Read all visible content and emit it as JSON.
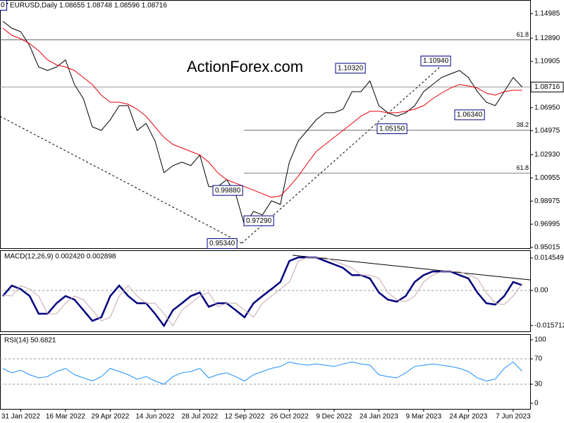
{
  "chart_data": [
    {
      "type": "line",
      "title": "EURUSD,Daily  1.08655 1.08748 1.08596 1.08716",
      "watermark": "ActionForex.com",
      "categories": [
        null,
        null,
        "31 Jan 2022",
        null,
        null,
        null,
        null,
        "16 Mar 2022",
        null,
        null,
        null,
        null,
        "29 Apr 2022",
        null,
        null,
        null,
        null,
        "14 Jun 2022",
        null,
        null,
        null,
        null,
        "28 Jul 2022",
        null,
        null,
        null,
        null,
        "12 Sep 2022",
        null,
        null,
        null,
        null,
        "26 Oct 2022",
        null,
        null,
        null,
        null,
        "9 Dec 2022",
        null,
        null,
        null,
        null,
        "24 Jan 2023",
        null,
        null,
        null,
        null,
        "9 Mar 2023",
        null,
        null,
        null,
        null,
        "24 Apr 2023",
        null,
        null,
        null,
        null,
        "7 Jun 2023",
        null
      ],
      "series": [
        {
          "color": "#000000",
          "values": [
            1.1434,
            1.1374,
            1.1344,
            1.1224,
            1.1043,
            1.1013,
            1.1043,
            1.1103,
            1.0893,
            1.0772,
            1.0531,
            1.0501,
            1.0592,
            1.0712,
            1.0712,
            1.0501,
            1.0561,
            1.0411,
            1.014,
            1.02,
            1.023,
            1.02,
            1.0291,
            1.002,
            1.002,
            1.008,
            0.996,
            0.9689,
            0.9809,
            0.9779,
            0.9899,
            0.9869,
            1.023,
            1.0411,
            1.0501,
            1.0592,
            1.0652,
            1.0652,
            1.0682,
            1.0832,
            1.0832,
            1.0923,
            1.0712,
            1.0652,
            1.0622,
            1.0652,
            1.0712,
            1.0832,
            1.0893,
            1.0953,
            1.0983,
            1.1013,
            1.0953,
            1.0832,
            1.0742,
            1.0712,
            1.0832,
            1.0953,
            1.08716
          ]
        },
        {
          "color": "#e8000b",
          "values": [
            1.1374,
            1.1314,
            1.1284,
            1.1242,
            1.1182,
            1.1103,
            1.1061,
            1.1043,
            1.1013,
            1.0953,
            1.0893,
            1.0802,
            1.0742,
            1.0742,
            1.0724,
            1.0682,
            1.0622,
            1.0531,
            1.0441,
            1.0381,
            1.0351,
            1.0321,
            1.0291,
            1.023,
            1.014,
            1.008,
            1.005,
            1.002,
            0.999,
            0.996,
            0.9929,
            0.9941,
            1.002,
            1.011,
            1.0218,
            1.0321,
            1.0381,
            1.0441,
            1.0501,
            1.0561,
            1.0622,
            1.0664,
            1.0664,
            1.0652,
            1.0652,
            1.0664,
            1.0682,
            1.0712,
            1.0772,
            1.082,
            1.0863,
            1.0893,
            1.0881,
            1.0863,
            1.082,
            1.0802,
            1.0832,
            1.0844,
            1.0844
          ]
        }
      ],
      "ylim": [
        0.9495,
        1.1615
      ],
      "yticks": [
        1.14985,
        {
          "value": 1.1289,
          "label": "1.12890"
        },
        1.10905,
        {
          "value": 1.0695,
          "label": "1.06950"
        },
        1.04975,
        {
          "value": 1.0293,
          "label": "1.02930"
        },
        1.00955,
        0.98975,
        0.96995,
        0.95015
      ],
      "last_price": 1.08716,
      "levels": [
        {
          "value": 1.1275,
          "label": "61.8"
        },
        {
          "value": 1.0502,
          "label": "38.2"
        },
        {
          "value": 1.0135,
          "label": "61.8"
        }
      ],
      "annotations": [
        {
          "value": 1.157,
          "label": "0"
        },
        {
          "value": 0.9534,
          "label": "0.95340"
        },
        {
          "value": 0.9988,
          "label": "0.99880"
        },
        {
          "value": 0.9729,
          "label": "0.97290"
        },
        {
          "value": 1.0515,
          "label": "1.05150"
        },
        {
          "value": 1.1032,
          "label": "1.10320"
        },
        {
          "value": 1.1094,
          "label": "1.10940"
        },
        {
          "value": 1.0634,
          "label": "1.06340"
        }
      ]
    },
    {
      "type": "line",
      "title": "MACD(12,26,9) 0.002420 0.002898",
      "series": [
        {
          "color": "#000080",
          "values": [
            -0.0025,
            0.0022,
            0.0006,
            -0.0025,
            -0.0104,
            -0.0104,
            -0.0057,
            -0.0025,
            -0.0041,
            -0.0088,
            -0.0136,
            -0.012,
            -0.0025,
            0.0022,
            -0.0025,
            -0.0057,
            -0.0057,
            -0.0104,
            -0.0158,
            -0.0088,
            -0.0057,
            -0.0025,
            -0.0009,
            -0.0073,
            -0.0057,
            -0.0057,
            -0.0088,
            -0.012,
            -0.0057,
            -0.0025,
            0.0006,
            0.0038,
            0.0132,
            0.0148,
            0.0148,
            0.0148,
            0.0132,
            0.0117,
            0.0101,
            0.0069,
            0.0069,
            0.0054,
            -0.0009,
            -0.0041,
            -0.005,
            -0.0025,
            0.0038,
            0.0069,
            0.0085,
            0.0085,
            0.0085,
            0.0069,
            0.0054,
            -0.0009,
            -0.0057,
            -0.0063,
            -0.0025,
            0.0038,
            0.00242
          ]
        },
        {
          "color": "#c8a8a8",
          "values": [
            -0.002,
            -0.0025,
            0.0022,
            0.0006,
            -0.0025,
            -0.0104,
            -0.0104,
            -0.0057,
            -0.0025,
            -0.0041,
            -0.0088,
            -0.0136,
            -0.012,
            -0.0025,
            0.0022,
            -0.0025,
            -0.0057,
            -0.0057,
            -0.0104,
            -0.0158,
            -0.0088,
            -0.0057,
            -0.0025,
            -0.0009,
            -0.0073,
            -0.0057,
            -0.0057,
            -0.0088,
            -0.012,
            -0.0057,
            -0.0025,
            0.0006,
            0.0038,
            0.0132,
            0.0148,
            0.0148,
            0.0148,
            0.0132,
            0.0117,
            0.0101,
            0.0069,
            0.0069,
            0.0054,
            -0.0009,
            -0.0041,
            -0.005,
            -0.0025,
            0.0038,
            0.0069,
            0.0085,
            0.0085,
            0.0085,
            0.0069,
            0.0054,
            -0.0009,
            -0.0057,
            -0.0063,
            -0.0025,
            0.002898
          ]
        }
      ],
      "ylim": [
        -0.0183,
        0.018
      ],
      "yticks": [
        0.014549,
        {
          "value": 0,
          "label": "0.00"
        },
        -0.015712
      ]
    },
    {
      "type": "line",
      "title": "RSI(14) 50.6821",
      "series": [
        {
          "color": "#1e90ff",
          "values": [
            55,
            48,
            52,
            45,
            40,
            42,
            50,
            55,
            45,
            40,
            35,
            42,
            55,
            50,
            45,
            38,
            42,
            35,
            30,
            42,
            48,
            50,
            55,
            40,
            45,
            48,
            42,
            35,
            45,
            50,
            55,
            58,
            65,
            62,
            60,
            62,
            60,
            58,
            62,
            65,
            62,
            60,
            45,
            42,
            40,
            48,
            58,
            60,
            62,
            60,
            58,
            55,
            50,
            40,
            35,
            38,
            55,
            65,
            50.6821
          ]
        }
      ],
      "ylim": [
        -8.9,
        108.9
      ],
      "yticks": [
        100,
        70,
        30,
        0
      ]
    }
  ]
}
